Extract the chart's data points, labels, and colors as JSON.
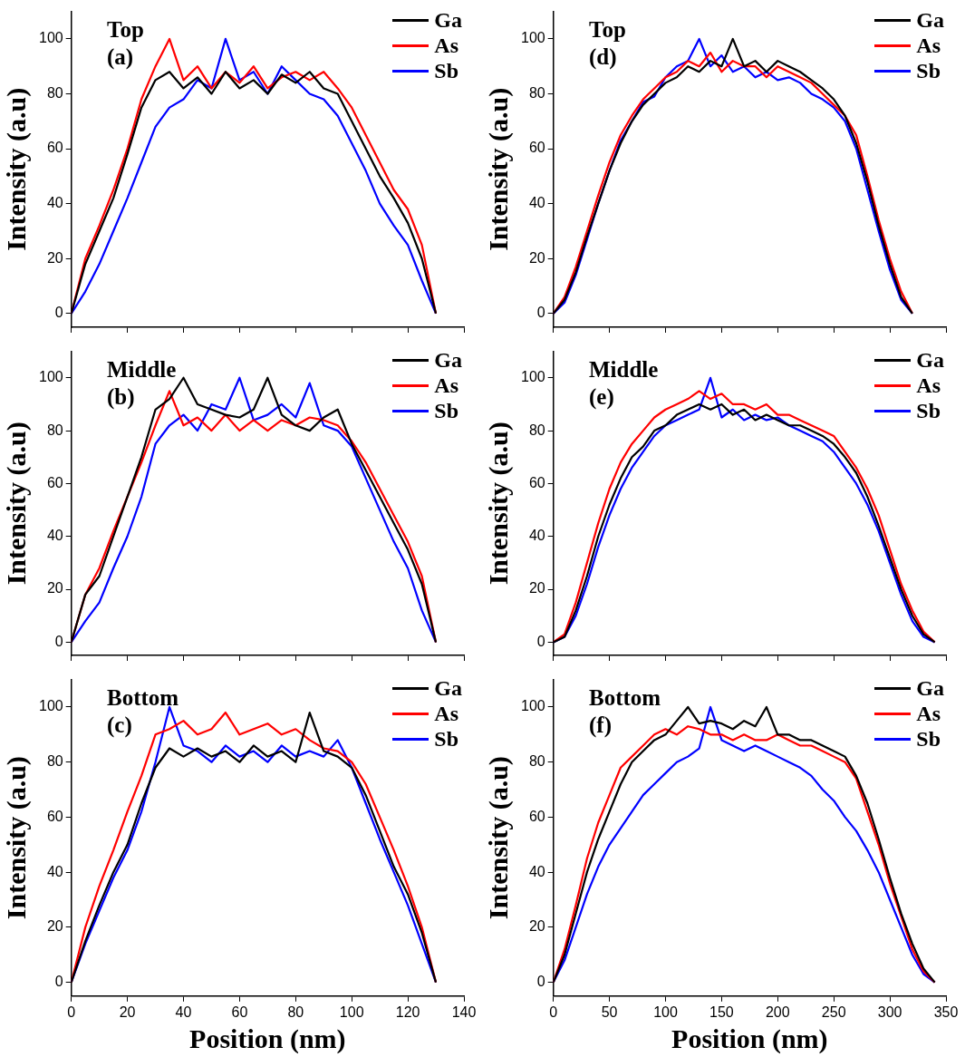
{
  "chart_data": [
    {
      "type": "line",
      "ylabel": "Intensity (a.u)",
      "annotations": [
        "Top",
        "(a)"
      ],
      "xlim": [
        0,
        140
      ],
      "xticks": [
        0,
        20,
        40,
        60,
        80,
        100,
        120,
        140
      ],
      "ylim": [
        -5,
        110
      ],
      "yticks": [
        0,
        20,
        40,
        60,
        80,
        100
      ],
      "tick_labels": "y",
      "grid": false,
      "legend": "top right",
      "marker": "none",
      "line_style": "solid",
      "x": [
        0,
        5,
        10,
        15,
        20,
        25,
        30,
        35,
        40,
        45,
        50,
        55,
        60,
        65,
        70,
        75,
        80,
        85,
        90,
        95,
        100,
        105,
        110,
        115,
        120,
        125,
        130
      ],
      "series": [
        {
          "name": "Ga",
          "color": "#000000",
          "values": [
            0,
            18,
            30,
            42,
            58,
            75,
            85,
            88,
            82,
            86,
            80,
            88,
            82,
            85,
            80,
            87,
            84,
            88,
            82,
            80,
            70,
            60,
            50,
            42,
            33,
            20,
            0
          ]
        },
        {
          "name": "As",
          "color": "#ff0000",
          "values": [
            0,
            20,
            32,
            45,
            60,
            78,
            90,
            100,
            85,
            90,
            82,
            88,
            84,
            90,
            82,
            86,
            88,
            85,
            88,
            82,
            75,
            65,
            55,
            45,
            38,
            25,
            0
          ]
        },
        {
          "name": "Sb",
          "color": "#0000ff",
          "values": [
            0,
            8,
            18,
            30,
            42,
            55,
            68,
            75,
            78,
            85,
            82,
            100,
            85,
            88,
            80,
            90,
            85,
            80,
            78,
            72,
            62,
            52,
            40,
            32,
            25,
            12,
            0
          ]
        }
      ]
    },
    {
      "type": "line",
      "ylabel": "Intensity (a.u)",
      "annotations": [
        "Top",
        "(d)"
      ],
      "xlim": [
        0,
        350
      ],
      "xticks": [
        0,
        50,
        100,
        150,
        200,
        250,
        300,
        350
      ],
      "ylim": [
        -5,
        110
      ],
      "yticks": [
        0,
        20,
        40,
        60,
        80,
        100
      ],
      "tick_labels": "y",
      "grid": false,
      "legend": "top right",
      "marker": "none",
      "line_style": "solid",
      "x": [
        0,
        10,
        20,
        30,
        40,
        50,
        60,
        70,
        80,
        90,
        100,
        110,
        120,
        130,
        140,
        150,
        160,
        170,
        180,
        190,
        200,
        210,
        220,
        230,
        240,
        250,
        260,
        270,
        280,
        290,
        300,
        310,
        320
      ],
      "series": [
        {
          "name": "Ga",
          "color": "#000000",
          "values": [
            0,
            5,
            15,
            28,
            40,
            52,
            62,
            70,
            76,
            80,
            84,
            86,
            90,
            88,
            92,
            90,
            100,
            90,
            92,
            88,
            92,
            90,
            88,
            85,
            82,
            78,
            72,
            62,
            48,
            32,
            18,
            6,
            0
          ]
        },
        {
          "name": "As",
          "color": "#ff0000",
          "values": [
            0,
            6,
            17,
            30,
            43,
            55,
            65,
            72,
            78,
            82,
            86,
            88,
            92,
            90,
            95,
            88,
            92,
            90,
            90,
            86,
            90,
            88,
            86,
            84,
            80,
            76,
            72,
            65,
            50,
            34,
            20,
            8,
            0
          ]
        },
        {
          "name": "Sb",
          "color": "#0000ff",
          "values": [
            0,
            4,
            14,
            27,
            40,
            52,
            63,
            70,
            77,
            79,
            86,
            90,
            92,
            100,
            90,
            94,
            88,
            90,
            86,
            88,
            85,
            86,
            84,
            80,
            78,
            75,
            70,
            60,
            45,
            30,
            16,
            5,
            0
          ]
        }
      ]
    },
    {
      "type": "line",
      "ylabel": "Intensity (a.u)",
      "annotations": [
        "Middle",
        "(b)"
      ],
      "xlim": [
        0,
        140
      ],
      "xticks": [
        0,
        20,
        40,
        60,
        80,
        100,
        120,
        140
      ],
      "ylim": [
        -5,
        110
      ],
      "yticks": [
        0,
        20,
        40,
        60,
        80,
        100
      ],
      "tick_labels": "y",
      "grid": false,
      "legend": "top right",
      "marker": "none",
      "line_style": "solid",
      "x": [
        0,
        5,
        10,
        15,
        20,
        25,
        30,
        35,
        40,
        45,
        50,
        55,
        60,
        65,
        70,
        75,
        80,
        85,
        90,
        95,
        100,
        105,
        110,
        115,
        120,
        125,
        130
      ],
      "series": [
        {
          "name": "Ga",
          "color": "#000000",
          "values": [
            0,
            18,
            25,
            40,
            55,
            70,
            88,
            92,
            100,
            90,
            88,
            86,
            85,
            88,
            100,
            86,
            82,
            80,
            85,
            88,
            75,
            65,
            55,
            45,
            35,
            22,
            0
          ]
        },
        {
          "name": "As",
          "color": "#ff0000",
          "values": [
            0,
            18,
            28,
            42,
            55,
            68,
            82,
            95,
            82,
            85,
            80,
            86,
            80,
            84,
            80,
            84,
            82,
            85,
            84,
            82,
            76,
            68,
            58,
            48,
            38,
            25,
            0
          ]
        },
        {
          "name": "Sb",
          "color": "#0000ff",
          "values": [
            0,
            8,
            15,
            28,
            40,
            55,
            75,
            82,
            86,
            80,
            90,
            88,
            100,
            84,
            86,
            90,
            85,
            98,
            82,
            80,
            74,
            62,
            50,
            38,
            28,
            12,
            0
          ]
        }
      ]
    },
    {
      "type": "line",
      "ylabel": "Intensity (a.u)",
      "annotations": [
        "Middle",
        "(e)"
      ],
      "xlim": [
        0,
        350
      ],
      "xticks": [
        0,
        50,
        100,
        150,
        200,
        250,
        300,
        350
      ],
      "ylim": [
        -5,
        110
      ],
      "yticks": [
        0,
        20,
        40,
        60,
        80,
        100
      ],
      "tick_labels": "y",
      "grid": false,
      "legend": "top right",
      "marker": "none",
      "line_style": "solid",
      "x": [
        0,
        10,
        20,
        30,
        40,
        50,
        60,
        70,
        80,
        90,
        100,
        110,
        120,
        130,
        140,
        150,
        160,
        170,
        180,
        190,
        200,
        210,
        220,
        230,
        240,
        250,
        260,
        270,
        280,
        290,
        300,
        310,
        320,
        330,
        340
      ],
      "series": [
        {
          "name": "Ga",
          "color": "#000000",
          "values": [
            0,
            2,
            12,
            25,
            40,
            52,
            62,
            70,
            74,
            80,
            82,
            86,
            88,
            90,
            88,
            90,
            86,
            88,
            84,
            86,
            84,
            82,
            82,
            80,
            78,
            75,
            70,
            64,
            55,
            44,
            32,
            20,
            10,
            3,
            0
          ]
        },
        {
          "name": "As",
          "color": "#ff0000",
          "values": [
            0,
            3,
            15,
            30,
            45,
            58,
            68,
            75,
            80,
            85,
            88,
            90,
            92,
            95,
            92,
            94,
            90,
            90,
            88,
            90,
            86,
            86,
            84,
            82,
            80,
            78,
            72,
            66,
            58,
            48,
            35,
            22,
            12,
            4,
            0
          ]
        },
        {
          "name": "Sb",
          "color": "#0000ff",
          "values": [
            0,
            2,
            10,
            22,
            36,
            48,
            58,
            66,
            72,
            78,
            82,
            84,
            86,
            88,
            100,
            85,
            88,
            84,
            86,
            84,
            85,
            82,
            80,
            78,
            76,
            72,
            66,
            60,
            52,
            42,
            30,
            18,
            8,
            2,
            0
          ]
        }
      ]
    },
    {
      "type": "line",
      "xlabel": "Position (nm)",
      "ylabel": "Intensity (a.u)",
      "annotations": [
        "Bottom",
        "(c)"
      ],
      "xlim": [
        0,
        140
      ],
      "xticks": [
        0,
        20,
        40,
        60,
        80,
        100,
        120,
        140
      ],
      "ylim": [
        -5,
        110
      ],
      "yticks": [
        0,
        20,
        40,
        60,
        80,
        100
      ],
      "grid": false,
      "legend": "top right",
      "marker": "none",
      "line_style": "solid",
      "x": [
        0,
        5,
        10,
        15,
        20,
        25,
        30,
        35,
        40,
        45,
        50,
        55,
        60,
        65,
        70,
        75,
        80,
        85,
        90,
        95,
        100,
        105,
        110,
        115,
        120,
        125,
        130
      ],
      "series": [
        {
          "name": "Ga",
          "color": "#000000",
          "values": [
            0,
            15,
            28,
            40,
            50,
            65,
            78,
            85,
            82,
            85,
            82,
            84,
            80,
            86,
            82,
            84,
            80,
            98,
            84,
            82,
            78,
            68,
            55,
            42,
            32,
            18,
            0
          ]
        },
        {
          "name": "As",
          "color": "#ff0000",
          "values": [
            0,
            20,
            35,
            48,
            62,
            75,
            90,
            92,
            95,
            90,
            92,
            98,
            90,
            92,
            94,
            90,
            92,
            88,
            85,
            84,
            80,
            72,
            60,
            48,
            35,
            20,
            0
          ]
        },
        {
          "name": "Sb",
          "color": "#0000ff",
          "values": [
            0,
            14,
            26,
            38,
            48,
            62,
            80,
            100,
            86,
            84,
            80,
            86,
            82,
            84,
            80,
            86,
            82,
            84,
            82,
            88,
            78,
            65,
            52,
            40,
            28,
            14,
            0
          ]
        }
      ]
    },
    {
      "type": "line",
      "xlabel": "Position (nm)",
      "ylabel": "Intensity (a.u)",
      "annotations": [
        "Bottom",
        "(f)"
      ],
      "xlim": [
        0,
        350
      ],
      "xticks": [
        0,
        50,
        100,
        150,
        200,
        250,
        300,
        350
      ],
      "ylim": [
        -5,
        110
      ],
      "yticks": [
        0,
        20,
        40,
        60,
        80,
        100
      ],
      "grid": false,
      "legend": "top right",
      "marker": "none",
      "line_style": "solid",
      "x": [
        0,
        10,
        20,
        30,
        40,
        50,
        60,
        70,
        80,
        90,
        100,
        110,
        120,
        130,
        140,
        150,
        160,
        170,
        180,
        190,
        200,
        210,
        220,
        230,
        240,
        250,
        260,
        270,
        280,
        290,
        300,
        310,
        320,
        330,
        340
      ],
      "series": [
        {
          "name": "Ga",
          "color": "#000000",
          "values": [
            0,
            10,
            25,
            40,
            52,
            62,
            72,
            80,
            84,
            88,
            90,
            95,
            100,
            94,
            95,
            94,
            92,
            95,
            93,
            100,
            90,
            90,
            88,
            88,
            86,
            84,
            82,
            75,
            65,
            52,
            38,
            25,
            14,
            5,
            0
          ]
        },
        {
          "name": "As",
          "color": "#ff0000",
          "values": [
            0,
            12,
            28,
            45,
            58,
            68,
            78,
            82,
            86,
            90,
            92,
            90,
            93,
            92,
            90,
            90,
            88,
            90,
            88,
            88,
            90,
            88,
            86,
            86,
            84,
            82,
            80,
            74,
            62,
            50,
            36,
            24,
            12,
            4,
            0
          ]
        },
        {
          "name": "Sb",
          "color": "#0000ff",
          "values": [
            0,
            8,
            20,
            32,
            42,
            50,
            56,
            62,
            68,
            72,
            76,
            80,
            82,
            85,
            100,
            88,
            86,
            84,
            86,
            84,
            82,
            80,
            78,
            75,
            70,
            66,
            60,
            55,
            48,
            40,
            30,
            20,
            10,
            3,
            0
          ]
        }
      ]
    }
  ]
}
